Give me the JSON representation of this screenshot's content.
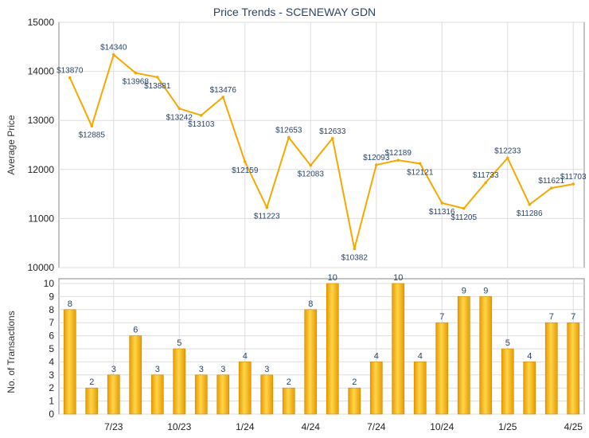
{
  "chart_data": [
    {
      "type": "line",
      "title": "Price Trends - SCENEWAY GDN",
      "ylabel": "Average Price",
      "ylim": [
        10000,
        15000
      ],
      "yticks": [
        10000,
        11000,
        12000,
        13000,
        14000,
        15000
      ],
      "color": "#f5a800",
      "values": [
        13870,
        12885,
        14340,
        13968,
        13881,
        13242,
        13103,
        13476,
        12159,
        11223,
        12653,
        12083,
        12633,
        10382,
        12093,
        12189,
        12121,
        11316,
        11205,
        11733,
        12233,
        11286,
        11621,
        11703
      ],
      "labels": [
        "$13870",
        "$12885",
        "$14340",
        "$13968",
        "$13881",
        "$13242",
        "$13103",
        "$13476",
        "$12159",
        "$11223",
        "$12653",
        "$12083",
        "$12633",
        "$10382",
        "$12093",
        "$12189",
        "$12121",
        "$11316",
        "$11205",
        "$11733",
        "$12233",
        "$11286",
        "$11621",
        "$11703"
      ]
    },
    {
      "type": "bar",
      "ylabel": "No. of Transactions",
      "ylim": [
        0,
        10
      ],
      "yticks": [
        0,
        1,
        2,
        3,
        4,
        5,
        6,
        7,
        8,
        9,
        10
      ],
      "color": "#f5a800",
      "values": [
        8,
        2,
        3,
        6,
        3,
        5,
        3,
        3,
        4,
        3,
        2,
        8,
        10,
        2,
        4,
        10,
        4,
        7,
        9,
        9,
        5,
        4,
        7,
        7
      ],
      "labels": [
        "8",
        "2",
        "3",
        "6",
        "3",
        "5",
        "3",
        "3",
        "4",
        "3",
        "2",
        "8",
        "10",
        "2",
        "4",
        "10",
        "4",
        "7",
        "9",
        "9",
        "5",
        "4",
        "7",
        "7"
      ],
      "xticks": [
        "7/23",
        "10/23",
        "1/24",
        "4/24",
        "7/24",
        "10/24",
        "1/25",
        "4/25"
      ],
      "xtick_index": [
        2,
        5,
        8,
        11,
        14,
        17,
        20,
        23
      ]
    }
  ]
}
